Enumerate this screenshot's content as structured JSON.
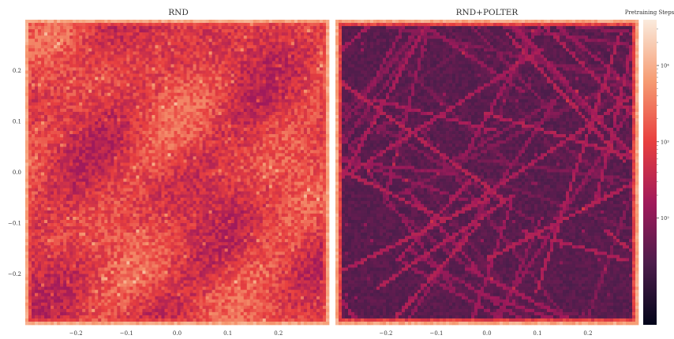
{
  "chart_data": [
    {
      "type": "heatmap",
      "title": "RND",
      "xlabel": "",
      "ylabel": "",
      "xlim": [
        -0.3,
        0.3
      ],
      "ylim": [
        -0.3,
        0.3
      ],
      "x_ticks": [
        "−0.2",
        "−0.1",
        "0.0",
        "0.1",
        "0.2"
      ],
      "y_ticks": [
        "0.2",
        "0.1",
        "0.0",
        "−0.1",
        "−0.2"
      ],
      "grid_cells": 96,
      "scale": "log",
      "description_of_values": "visit counts over pretraining steps; dense mid-range coverage with high-count borders",
      "typical_log10_range": [
        2.2,
        3.6
      ],
      "border_log10": 4.1
    },
    {
      "type": "heatmap",
      "title": "RND+POLTER",
      "xlabel": "",
      "ylabel": "",
      "xlim": [
        -0.3,
        0.3
      ],
      "ylim": [
        -0.3,
        0.3
      ],
      "x_ticks": [
        "−0.2",
        "−0.1",
        "0.0",
        "0.1",
        "0.2"
      ],
      "y_ticks": [],
      "grid_cells": 96,
      "scale": "log",
      "description_of_values": "low counts overall with many diagonal trajectory streaks and high-count borders",
      "typical_log10_range": [
        1.2,
        2.8
      ],
      "border_log10": 4.1
    }
  ],
  "colorbar": {
    "title": "Pretraining Steps",
    "scale": "log",
    "range_log10": [
      0.6,
      4.6
    ],
    "ticks": [
      {
        "label": "10⁴",
        "value_log10": 4
      },
      {
        "label": "10³",
        "value_log10": 3
      },
      {
        "label": "10²",
        "value_log10": 2
      }
    ],
    "colormap": [
      "#03051a",
      "#4c1d4b",
      "#a11a5b",
      "#e83f3f",
      "#f69c73",
      "#faebdd"
    ]
  }
}
